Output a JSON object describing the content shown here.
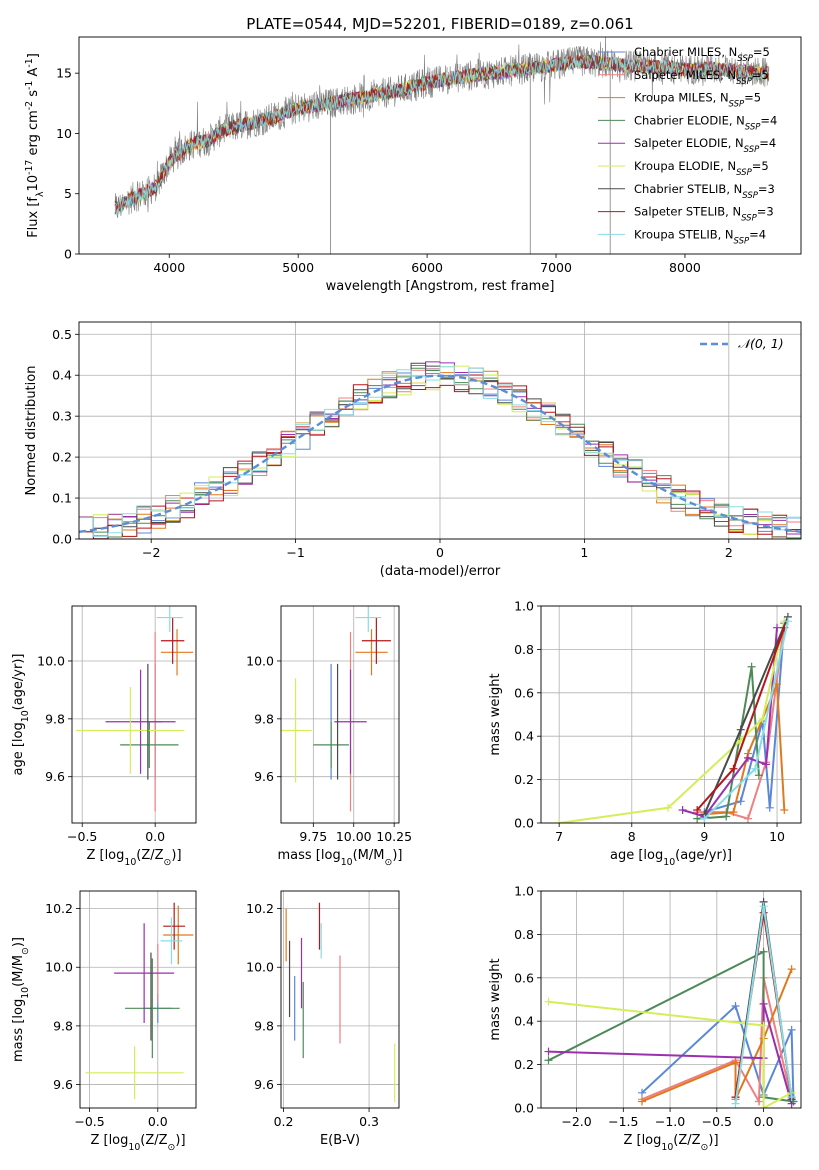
{
  "page_title": "PLATE=0544, MJD=52201, FIBERID=0189, z=0.061",
  "colors": {
    "chabrier_miles": "#5b87d6",
    "salpeter_miles": "#f07f7f",
    "kroupa_miles": "#e0791e",
    "chabrier_elodie": "#4d8a58",
    "salpeter_elodie": "#9b2fae",
    "kroupa_elodie": "#d4ee5a",
    "chabrier_stelib": "#4a4a4a",
    "salpeter_stelib": "#b3171c",
    "kroupa_stelib": "#86dde4",
    "data": "#7f7f7f",
    "normal": "#5b8ed6"
  },
  "chart_data": [
    {
      "id": "spectrum",
      "type": "line",
      "xlabel": "wavelength [Angstrom, rest frame]",
      "ylabel": "Flux [f$_\\lambda$10$^{-17}$ erg cm$^{-2}$ s$^{-1}$ A$^{-1}$]",
      "xlim": [
        3300,
        8900
      ],
      "ylim": [
        0,
        18
      ],
      "xticks": [
        4000,
        5000,
        6000,
        7000,
        8000
      ],
      "yticks": [
        0,
        5,
        10,
        15
      ],
      "grid": false,
      "legend_position": "right",
      "legend": [
        {
          "prefix": "Chabrier MILES, N",
          "sub": "SSP",
          "suffix": "=5",
          "color": "chabrier_miles"
        },
        {
          "prefix": "Salpeter MILES, N",
          "sub": "SSP",
          "suffix": "=5",
          "color": "salpeter_miles"
        },
        {
          "prefix": "Kroupa MILES, N",
          "sub": "SSP",
          "suffix": "=5",
          "color": "kroupa_miles"
        },
        {
          "prefix": "Chabrier ELODIE, N",
          "sub": "SSP",
          "suffix": "=4",
          "color": "chabrier_elodie"
        },
        {
          "prefix": "Salpeter ELODIE, N",
          "sub": "SSP",
          "suffix": "=4",
          "color": "salpeter_elodie"
        },
        {
          "prefix": "Kroupa ELODIE, N",
          "sub": "SSP",
          "suffix": "=5",
          "color": "kroupa_elodie"
        },
        {
          "prefix": "Chabrier STELIB, N",
          "sub": "SSP",
          "suffix": "=3",
          "color": "chabrier_stelib"
        },
        {
          "prefix": "Salpeter STELIB, N",
          "sub": "SSP",
          "suffix": "=3",
          "color": "salpeter_stelib"
        },
        {
          "prefix": "Kroupa STELIB, N",
          "sub": "SSP",
          "suffix": "=4",
          "color": "kroupa_stelib"
        }
      ],
      "continuum": [
        [
          3600,
          3.8
        ],
        [
          3700,
          4.6
        ],
        [
          3800,
          5.0
        ],
        [
          3900,
          5.6
        ],
        [
          4000,
          7.6
        ],
        [
          4100,
          8.6
        ],
        [
          4200,
          9.2
        ],
        [
          4300,
          9.4
        ],
        [
          4400,
          10.2
        ],
        [
          4600,
          10.8
        ],
        [
          4800,
          11.3
        ],
        [
          5000,
          12.1
        ],
        [
          5200,
          12.4
        ],
        [
          5400,
          12.8
        ],
        [
          5600,
          13.2
        ],
        [
          5800,
          13.6
        ],
        [
          6000,
          14.2
        ],
        [
          6200,
          14.6
        ],
        [
          6400,
          14.9
        ],
        [
          6600,
          15.1
        ],
        [
          6800,
          15.4
        ],
        [
          7000,
          15.7
        ],
        [
          7200,
          16.0
        ],
        [
          7400,
          15.8
        ],
        [
          7600,
          15.6
        ],
        [
          7800,
          15.5
        ],
        [
          8000,
          15.3
        ],
        [
          8200,
          15.4
        ],
        [
          8400,
          15.2
        ],
        [
          8600,
          15.0
        ]
      ]
    },
    {
      "id": "residuals",
      "type": "histogram",
      "xlabel": "(data-model)/error",
      "ylabel": "Normed distribution",
      "xlim": [
        -2.5,
        2.5
      ],
      "ylim": [
        0,
        0.53
      ],
      "xticks": [
        -2,
        -1,
        0,
        1,
        2
      ],
      "xticklabels": [
        "−2",
        "−1",
        "0",
        "1",
        "2"
      ],
      "yticks": [
        0.0,
        0.1,
        0.2,
        0.3,
        0.4,
        0.5
      ],
      "yticklabels": [
        "0.0",
        "0.1",
        "0.2",
        "0.3",
        "0.4",
        "0.5"
      ],
      "grid": true,
      "legend_label": "𝒩(0, 1)",
      "legend_position": "top-right",
      "normal": {
        "mean": 0,
        "sigma": 1
      }
    },
    {
      "id": "age_vs_z",
      "type": "scatter",
      "xlabel": "Z [log$_{10}$(Z/Z$_\\odot$)]",
      "ylabel": "age  [log$_{10}$(age/yr)]",
      "xlim": [
        -0.57,
        0.28
      ],
      "ylim": [
        9.44,
        10.19
      ],
      "xticks": [
        -0.5,
        0.0
      ],
      "xticklabels": [
        "−0.5",
        "0.0"
      ],
      "yticks": [
        9.6,
        9.8,
        10.0
      ],
      "yticklabels": [
        "9.6",
        "9.8",
        "10.0"
      ],
      "grid": true,
      "points": [
        {
          "x": 0.0,
          "xerr": 0.05,
          "y": 9.79,
          "yerr": 0.2,
          "color": "chabrier_miles"
        },
        {
          "x": 0.0,
          "xerr": 0.0,
          "y": 9.79,
          "yerr": 0.31,
          "color": "salpeter_miles"
        },
        {
          "x": 0.15,
          "xerr": 0.11,
          "y": 10.03,
          "yerr": 0.08,
          "color": "kroupa_miles"
        },
        {
          "x": -0.04,
          "xerr": 0.2,
          "y": 9.71,
          "yerr": 0.08,
          "color": "chabrier_elodie"
        },
        {
          "x": -0.1,
          "xerr": 0.24,
          "y": 9.79,
          "yerr": 0.18,
          "color": "salpeter_elodie"
        },
        {
          "x": -0.17,
          "xerr": 0.37,
          "y": 9.76,
          "yerr": 0.15,
          "color": "kroupa_elodie"
        },
        {
          "x": -0.05,
          "xerr": 0.0,
          "y": 9.79,
          "yerr": 0.2,
          "color": "chabrier_stelib"
        },
        {
          "x": 0.12,
          "xerr": 0.08,
          "y": 10.07,
          "yerr": 0.08,
          "color": "salpeter_stelib"
        },
        {
          "x": 0.1,
          "xerr": 0.09,
          "y": 10.15,
          "yerr": 0.05,
          "color": "kroupa_stelib"
        }
      ]
    },
    {
      "id": "age_vs_mass",
      "type": "scatter",
      "xlabel": "mass [log$_{10}$(M/M$_\\odot$)]",
      "ylabel": "",
      "xlim": [
        9.55,
        10.28
      ],
      "ylim": [
        9.44,
        10.19
      ],
      "xticks": [
        9.75,
        10.0,
        10.25
      ],
      "xticklabels": [
        "9.75",
        "10.00",
        "10.25"
      ],
      "yticks": [
        9.6,
        9.8,
        10.0
      ],
      "yticklabels": [
        "9.6",
        "9.8",
        "10.0"
      ],
      "grid": true,
      "points": [
        {
          "x": 9.86,
          "xerr": 0.0,
          "y": 9.79,
          "yerr": 0.2,
          "color": "chabrier_miles"
        },
        {
          "x": 9.98,
          "xerr": 0.0,
          "y": 9.79,
          "yerr": 0.31,
          "color": "salpeter_miles"
        },
        {
          "x": 10.11,
          "xerr": 0.1,
          "y": 10.03,
          "yerr": 0.08,
          "color": "kroupa_miles"
        },
        {
          "x": 9.86,
          "xerr": 0.11,
          "y": 9.71,
          "yerr": 0.08,
          "color": "chabrier_elodie"
        },
        {
          "x": 9.98,
          "xerr": 0.1,
          "y": 9.79,
          "yerr": 0.18,
          "color": "salpeter_elodie"
        },
        {
          "x": 9.64,
          "xerr": 0.1,
          "y": 9.76,
          "yerr": 0.18,
          "color": "kroupa_elodie"
        },
        {
          "x": 9.9,
          "xerr": 0.0,
          "y": 9.79,
          "yerr": 0.2,
          "color": "chabrier_stelib"
        },
        {
          "x": 10.14,
          "xerr": 0.09,
          "y": 10.07,
          "yerr": 0.08,
          "color": "salpeter_stelib"
        },
        {
          "x": 10.09,
          "xerr": 0.08,
          "y": 10.15,
          "yerr": 0.05,
          "color": "kroupa_stelib"
        }
      ]
    },
    {
      "id": "mass_weight_vs_age",
      "type": "line",
      "xlabel": "age  [log$_{10}$(age/yr)]",
      "ylabel": "mass weight",
      "xlim": [
        6.75,
        10.33
      ],
      "ylim": [
        0,
        1.0
      ],
      "xticks": [
        7,
        8,
        9,
        10
      ],
      "yticks": [
        0.0,
        0.2,
        0.4,
        0.6,
        0.8,
        1.0
      ],
      "yticklabels": [
        "0.0",
        "0.2",
        "0.4",
        "0.6",
        "0.8",
        "1.0"
      ],
      "grid": true,
      "series": [
        {
          "color": "chabrier_miles",
          "x": [
            9.0,
            9.5,
            9.8,
            9.9,
            10.1
          ],
          "y": [
            0.05,
            0.1,
            0.47,
            0.07,
            0.92
          ]
        },
        {
          "color": "salpeter_miles",
          "x": [
            8.9,
            9.3,
            9.6,
            9.85,
            10.1
          ],
          "y": [
            0.05,
            0.05,
            0.02,
            0.28,
            0.92
          ]
        },
        {
          "color": "kroupa_miles",
          "x": [
            9.0,
            9.4,
            9.6,
            10.0,
            10.1
          ],
          "y": [
            0.04,
            0.05,
            0.32,
            0.64,
            0.06
          ]
        },
        {
          "color": "chabrier_elodie",
          "x": [
            8.9,
            9.3,
            9.65,
            9.75
          ],
          "y": [
            0.02,
            0.03,
            0.72,
            0.22
          ]
        },
        {
          "color": "salpeter_elodie",
          "x": [
            8.7,
            9.0,
            9.6,
            9.85,
            10.0
          ],
          "y": [
            0.06,
            0.03,
            0.3,
            0.27,
            0.9
          ]
        },
        {
          "color": "kroupa_elodie",
          "x": [
            7.0,
            8.5,
            9.5,
            9.8,
            10.1
          ],
          "y": [
            0.0,
            0.07,
            0.38,
            0.48,
            0.93
          ]
        },
        {
          "color": "chabrier_stelib",
          "x": [
            9.0,
            9.5,
            10.15
          ],
          "y": [
            0.04,
            0.43,
            0.95
          ]
        },
        {
          "color": "salpeter_stelib",
          "x": [
            8.9,
            9.4,
            10.1
          ],
          "y": [
            0.06,
            0.25,
            0.9
          ]
        },
        {
          "color": "kroupa_stelib",
          "x": [
            9.0,
            9.7,
            10.15
          ],
          "y": [
            0.02,
            0.25,
            0.93
          ]
        }
      ]
    },
    {
      "id": "mass_vs_z",
      "type": "scatter",
      "xlabel": "Z [log$_{10}$(Z/Z$_\\odot$)]",
      "ylabel": "mass [log$_{10}$(M/M$_\\odot$)]",
      "xlim": [
        -0.57,
        0.28
      ],
      "ylim": [
        9.52,
        10.26
      ],
      "xticks": [
        -0.5,
        0.0
      ],
      "xticklabels": [
        "−0.5",
        "0.0"
      ],
      "yticks": [
        9.6,
        9.8,
        10.0,
        10.2
      ],
      "yticklabels": [
        "9.6",
        "9.8",
        "10.0",
        "10.2"
      ],
      "grid": true,
      "points": [
        {
          "x": -0.0,
          "xerr": 0.1,
          "y": 9.86,
          "yerr": 0.05,
          "color": "chabrier_miles"
        },
        {
          "x": 0.0,
          "xerr": 0.0,
          "y": 9.98,
          "yerr": 0.1,
          "color": "salpeter_miles"
        },
        {
          "x": 0.15,
          "xerr": 0.11,
          "y": 10.11,
          "yerr": 0.1,
          "color": "kroupa_miles"
        },
        {
          "x": -0.04,
          "xerr": 0.2,
          "y": 9.86,
          "yerr": 0.17,
          "color": "chabrier_elodie"
        },
        {
          "x": -0.1,
          "xerr": 0.22,
          "y": 9.98,
          "yerr": 0.17,
          "color": "salpeter_elodie"
        },
        {
          "x": -0.17,
          "xerr": 0.36,
          "y": 9.64,
          "yerr": 0.09,
          "color": "kroupa_elodie"
        },
        {
          "x": -0.05,
          "xerr": 0.0,
          "y": 9.9,
          "yerr": 0.15,
          "color": "chabrier_stelib"
        },
        {
          "x": 0.12,
          "xerr": 0.08,
          "y": 10.14,
          "yerr": 0.08,
          "color": "salpeter_stelib"
        },
        {
          "x": 0.1,
          "xerr": 0.08,
          "y": 10.09,
          "yerr": 0.08,
          "color": "kroupa_stelib"
        }
      ]
    },
    {
      "id": "mass_vs_ebv",
      "type": "scatter",
      "xlabel": "E(B-V)",
      "ylabel": "",
      "xlim": [
        0.197,
        0.335
      ],
      "ylim": [
        9.52,
        10.26
      ],
      "xticks": [
        0.2,
        0.3
      ],
      "xticklabels": [
        "0.2",
        "0.3"
      ],
      "yticks": [
        9.6,
        9.8,
        10.0,
        10.2
      ],
      "yticklabels": [
        "9.6",
        "9.8",
        "10.0",
        "10.2"
      ],
      "grid": true,
      "points": [
        {
          "x": 0.213,
          "y": 9.86,
          "yerr": 0.11,
          "color": "chabrier_miles"
        },
        {
          "x": 0.266,
          "y": 9.89,
          "yerr": 0.15,
          "color": "salpeter_miles"
        },
        {
          "x": 0.203,
          "y": 10.11,
          "yerr": 0.09,
          "color": "kroupa_miles"
        },
        {
          "x": 0.223,
          "y": 9.82,
          "yerr": 0.13,
          "color": "chabrier_elodie"
        },
        {
          "x": 0.221,
          "y": 9.98,
          "yerr": 0.12,
          "color": "salpeter_elodie"
        },
        {
          "x": 0.33,
          "y": 9.64,
          "yerr": 0.1,
          "color": "kroupa_elodie"
        },
        {
          "x": 0.207,
          "y": 9.96,
          "yerr": 0.13,
          "color": "chabrier_stelib"
        },
        {
          "x": 0.242,
          "y": 10.14,
          "yerr": 0.08,
          "color": "salpeter_stelib"
        },
        {
          "x": 0.244,
          "y": 10.09,
          "yerr": 0.06,
          "color": "kroupa_stelib"
        }
      ]
    },
    {
      "id": "mass_weight_vs_z",
      "type": "line",
      "xlabel": "Z [log$_{10}$(Z/Z$_\\odot$)]",
      "ylabel": "mass weight",
      "xlim": [
        -2.38,
        0.4
      ],
      "ylim": [
        0,
        1.0
      ],
      "xticks": [
        -2.0,
        -1.5,
        -1.0,
        -0.5,
        0.0
      ],
      "xticklabels": [
        "−2.0",
        "−1.5",
        "−1.0",
        "−0.5",
        "0.0"
      ],
      "yticks": [
        0.0,
        0.2,
        0.4,
        0.6,
        0.8,
        1.0
      ],
      "yticklabels": [
        "0.0",
        "0.2",
        "0.4",
        "0.6",
        "0.8",
        "1.0"
      ],
      "grid": true,
      "series": [
        {
          "color": "chabrier_miles",
          "x": [
            -1.3,
            -0.3,
            0.0,
            0.3,
            0.32
          ],
          "y": [
            0.07,
            0.47,
            0.06,
            0.36,
            0.03
          ]
        },
        {
          "color": "salpeter_miles",
          "x": [
            -1.3,
            -0.3,
            -0.05,
            0.0,
            0.3
          ],
          "y": [
            0.04,
            0.22,
            0.03,
            0.6,
            0.04
          ]
        },
        {
          "color": "kroupa_miles",
          "x": [
            -1.3,
            -0.3,
            -0.3,
            0.0,
            0.3
          ],
          "y": [
            0.03,
            0.21,
            0.04,
            0.32,
            0.64
          ]
        },
        {
          "color": "chabrier_elodie",
          "x": [
            -2.3,
            0.0,
            0.0,
            0.32
          ],
          "y": [
            0.22,
            0.72,
            0.05,
            0.03
          ]
        },
        {
          "color": "salpeter_elodie",
          "x": [
            -2.3,
            0.0,
            0.0,
            0.3
          ],
          "y": [
            0.26,
            0.23,
            0.48,
            0.02
          ]
        },
        {
          "color": "kroupa_elodie",
          "x": [
            -2.3,
            0.0,
            0.0,
            0.3
          ],
          "y": [
            0.49,
            0.38,
            0.0,
            0.07
          ]
        },
        {
          "color": "chabrier_stelib",
          "x": [
            -0.3,
            0.0,
            0.3
          ],
          "y": [
            0.05,
            0.95,
            0.04
          ]
        },
        {
          "color": "salpeter_stelib",
          "x": [
            -0.3,
            0.0,
            0.3
          ],
          "y": [
            0.05,
            0.9,
            0.05
          ]
        },
        {
          "color": "kroupa_stelib",
          "x": [
            -0.3,
            0.0,
            0.3
          ],
          "y": [
            0.02,
            0.93,
            0.05
          ]
        }
      ]
    }
  ]
}
